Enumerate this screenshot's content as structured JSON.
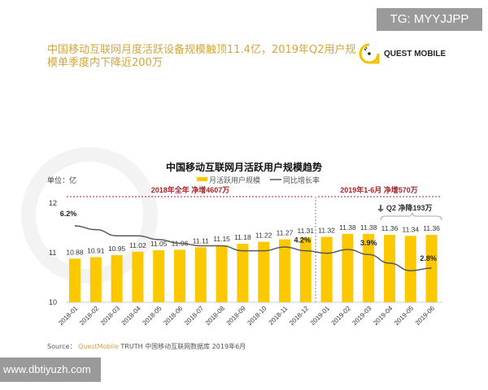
{
  "watermark_top": "TG: MYYJJPP",
  "headline": "中国移动互联网月度活跃设备规模触顶11.4亿，2019年Q2用户规模单季度内下降近200万",
  "logo": {
    "text": "QUEST MOBILE",
    "color": "#f2c400"
  },
  "watermark_bottom": "www.dbtiyuzh.com",
  "source": {
    "prefix": "Source：",
    "brand": "QuestMobile",
    "rest": "TRUTH 中国移动互联网数据库 2019年6月"
  },
  "colors": {
    "bar": "#fcc800",
    "line": "#595959",
    "annotation": "#a3262a",
    "accent": "#d4a53a"
  },
  "chart_data": {
    "type": "bar",
    "title": "中国移动互联网月活跃用户规模趋势",
    "unit_label": "单位：亿",
    "legend": [
      "月活跃用户规模",
      "同比增长率"
    ],
    "legend_position": "top",
    "categories": [
      "2018-01",
      "2018-02",
      "2018-03",
      "2018-04",
      "2018-05",
      "2018-06",
      "2018-07",
      "2018-08",
      "2018-09",
      "2018-10",
      "2018-11",
      "2018-12",
      "2019-01",
      "2019-02",
      "2019-03",
      "2019-04",
      "2019-05",
      "2019-06"
    ],
    "ylim": [
      10,
      12
    ],
    "yticks": [
      "10",
      "11",
      "12"
    ],
    "series": [
      {
        "name": "月活跃用户规模",
        "type": "bar",
        "values": [
          10.88,
          10.91,
          10.95,
          11.02,
          11.05,
          11.06,
          11.11,
          11.15,
          11.18,
          11.22,
          11.27,
          11.31,
          11.32,
          11.38,
          11.38,
          11.36,
          11.34,
          11.36
        ],
        "labels": [
          "10.88",
          "10.91",
          "10.95",
          "11.02",
          "11.05",
          "11.06",
          "11.11",
          "11.15",
          "11.18",
          "11.22",
          "11.27",
          "11.31",
          "11.32",
          "11.38",
          "11.38",
          "11.36",
          "11.34",
          "11.36"
        ]
      },
      {
        "name": "同比增长率",
        "type": "line",
        "unit": "%",
        "values": [
          6.2,
          5.9,
          5.4,
          5.4,
          5.1,
          4.8,
          4.6,
          4.6,
          4.2,
          4.2,
          4.5,
          4.2,
          4.0,
          4.3,
          3.9,
          3.2,
          2.6,
          2.8
        ],
        "point_labels": [
          {
            "index": 0,
            "text": "6.2%"
          },
          {
            "index": 11,
            "text": "4.2%"
          },
          {
            "index": 14,
            "text": "3.9%"
          },
          {
            "index": 17,
            "text": "2.8%"
          }
        ]
      }
    ],
    "annotations": [
      {
        "text": "2018年全年 净增4607万",
        "from": "2018-01",
        "to": "2018-12"
      },
      {
        "text": "2019年1-6月 净增570万",
        "from": "2019-01",
        "to": "2019-06"
      },
      {
        "text": "Q2 净降193万",
        "from": "2019-04",
        "to": "2019-06"
      }
    ],
    "grid": false
  }
}
